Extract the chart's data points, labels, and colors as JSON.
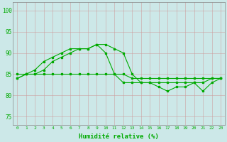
{
  "line1_y": [
    84,
    85,
    86,
    88,
    89,
    90,
    91,
    91,
    91,
    92,
    92,
    91,
    90,
    85,
    83,
    83,
    83,
    83,
    83,
    83,
    83,
    83,
    84,
    84
  ],
  "line2_y": [
    85,
    85,
    85,
    85,
    85,
    85,
    85,
    85,
    85,
    85,
    85,
    85,
    85,
    84,
    84,
    84,
    84,
    84,
    84,
    84,
    84,
    84,
    84,
    84
  ],
  "line3_y": [
    84,
    85,
    85,
    86,
    88,
    89,
    90,
    91,
    91,
    92,
    90,
    85,
    83,
    83,
    83,
    83,
    82,
    81,
    82,
    82,
    83,
    81,
    83,
    84
  ],
  "x": [
    0,
    1,
    2,
    3,
    4,
    5,
    6,
    7,
    8,
    9,
    10,
    11,
    12,
    13,
    14,
    15,
    16,
    17,
    18,
    19,
    20,
    21,
    22,
    23
  ],
  "line_color": "#00aa00",
  "bg_color": "#cce8e8",
  "grid_major_color": "#aaaaaa",
  "grid_minor_color": "#cccccc",
  "ylim": [
    73,
    102
  ],
  "yticks": [
    75,
    80,
    85,
    90,
    95,
    100
  ],
  "xticks": [
    0,
    1,
    2,
    3,
    4,
    5,
    6,
    7,
    8,
    9,
    10,
    11,
    12,
    13,
    14,
    15,
    16,
    17,
    18,
    19,
    20,
    21,
    22,
    23
  ],
  "xlabel": "Humidité relative (%)",
  "xlabel_color": "#00aa00"
}
